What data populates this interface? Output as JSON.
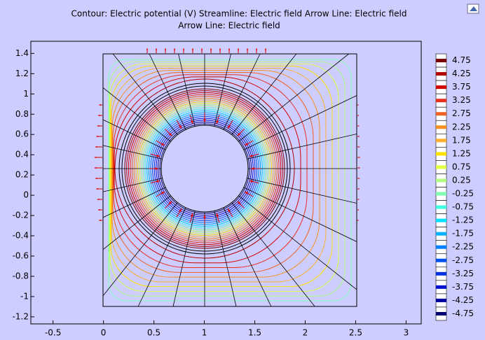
{
  "chart_data": {
    "type": "contour",
    "title": [
      "Contour: Electric potential (V)  Streamline: Electric field  Arrow Line: Electric field",
      "Arrow Line: Electric field"
    ],
    "xlim": [
      -0.72,
      3.15
    ],
    "ylim": [
      -1.27,
      1.52
    ],
    "xticks": [
      -0.5,
      0,
      0.5,
      1,
      1.5,
      2,
      2.5,
      3
    ],
    "yticks": [
      -1.2,
      -1,
      -0.8,
      -0.6,
      -0.4,
      -0.2,
      0,
      0.2,
      0.4,
      0.6,
      0.8,
      1,
      1.2,
      1.4
    ],
    "colorbar": {
      "levels": [
        4.75,
        4.25,
        3.75,
        3.25,
        2.75,
        2.25,
        1.75,
        1.25,
        0.75,
        0.25,
        -0.25,
        -0.75,
        -1.25,
        -1.75,
        -2.25,
        -2.75,
        -3.25,
        -3.75,
        -4.25,
        -4.75
      ],
      "colors": [
        "#7a0000",
        "#b00000",
        "#d40000",
        "#e83020",
        "#f06020",
        "#f89020",
        "#ffb030",
        "#ffe000",
        "#e0ff40",
        "#b0ff80",
        "#80ffb0",
        "#40ffe0",
        "#00e0ff",
        "#00b0ff",
        "#0080ff",
        "#0050f0",
        "#0030e0",
        "#0010d0",
        "#0000a0",
        "#000070"
      ]
    }
  }
}
